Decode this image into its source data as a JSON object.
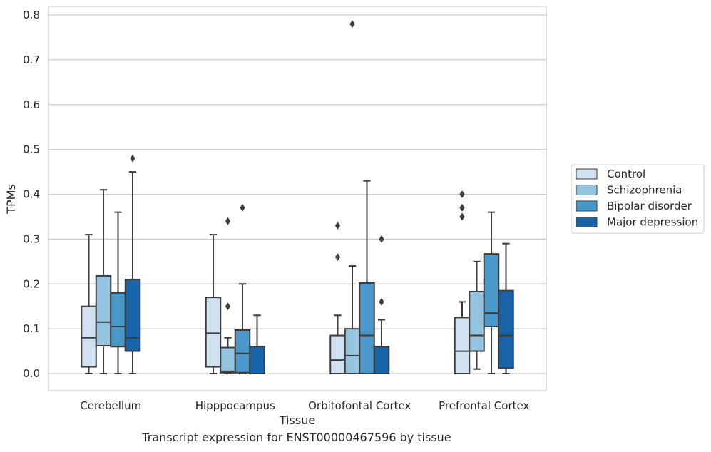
{
  "caption": "Transcript expression for ENST00000467596 by tissue",
  "chart_data": {
    "type": "box",
    "xlabel": "Tissue",
    "ylabel": "TPMs",
    "ylim": [
      -0.04,
      0.82
    ],
    "yticks": [
      0.0,
      0.1,
      0.2,
      0.3,
      0.4,
      0.5,
      0.6,
      0.7,
      0.8
    ],
    "ytick_labels": [
      "0.0",
      "0.1",
      "0.2",
      "0.3",
      "0.4",
      "0.5",
      "0.6",
      "0.7",
      "0.8"
    ],
    "grid": true,
    "legend_position": "right",
    "categories": [
      "Cerebellum",
      "Hipppocampus",
      "Orbitofontal Cortex",
      "Prefrontal Cortex"
    ],
    "series": [
      {
        "name": "Control",
        "color": "#d0e1f2",
        "boxes": [
          {
            "q1": 0.015,
            "median": 0.08,
            "q3": 0.15,
            "whisker_low": 0.0,
            "whisker_high": 0.31,
            "outliers": []
          },
          {
            "q1": 0.015,
            "median": 0.09,
            "q3": 0.17,
            "whisker_low": 0.0,
            "whisker_high": 0.31,
            "outliers": []
          },
          {
            "q1": 0.0,
            "median": 0.03,
            "q3": 0.085,
            "whisker_low": 0.0,
            "whisker_high": 0.13,
            "outliers": [
              0.26,
              0.33
            ]
          },
          {
            "q1": 0.0,
            "median": 0.05,
            "q3": 0.125,
            "whisker_low": 0.0,
            "whisker_high": 0.16,
            "outliers": [
              0.35,
              0.37,
              0.4
            ]
          }
        ]
      },
      {
        "name": "Schizophrenia",
        "color": "#94c4df",
        "boxes": [
          {
            "q1": 0.062,
            "median": 0.115,
            "q3": 0.218,
            "whisker_low": 0.0,
            "whisker_high": 0.41,
            "outliers": []
          },
          {
            "q1": 0.002,
            "median": 0.005,
            "q3": 0.058,
            "whisker_low": 0.0,
            "whisker_high": 0.08,
            "outliers": [
              0.15,
              0.34
            ]
          },
          {
            "q1": 0.0,
            "median": 0.04,
            "q3": 0.1,
            "whisker_low": 0.0,
            "whisker_high": 0.24,
            "outliers": [
              0.78
            ]
          },
          {
            "q1": 0.05,
            "median": 0.085,
            "q3": 0.183,
            "whisker_low": 0.01,
            "whisker_high": 0.25,
            "outliers": []
          }
        ]
      },
      {
        "name": "Bipolar disorder",
        "color": "#4a98c9",
        "boxes": [
          {
            "q1": 0.06,
            "median": 0.105,
            "q3": 0.18,
            "whisker_low": 0.0,
            "whisker_high": 0.36,
            "outliers": []
          },
          {
            "q1": 0.002,
            "median": 0.045,
            "q3": 0.097,
            "whisker_low": 0.0,
            "whisker_high": 0.2,
            "outliers": [
              0.37
            ]
          },
          {
            "q1": 0.0,
            "median": 0.085,
            "q3": 0.202,
            "whisker_low": 0.0,
            "whisker_high": 0.43,
            "outliers": []
          },
          {
            "q1": 0.105,
            "median": 0.135,
            "q3": 0.267,
            "whisker_low": 0.0,
            "whisker_high": 0.36,
            "outliers": []
          }
        ]
      },
      {
        "name": "Major depression",
        "color": "#1764ab",
        "boxes": [
          {
            "q1": 0.05,
            "median": 0.08,
            "q3": 0.21,
            "whisker_low": 0.0,
            "whisker_high": 0.45,
            "outliers": [
              0.48
            ]
          },
          {
            "q1": 0.0,
            "median": 0.0,
            "q3": 0.06,
            "whisker_low": 0.0,
            "whisker_high": 0.13,
            "outliers": []
          },
          {
            "q1": 0.0,
            "median": 0.0,
            "q3": 0.06,
            "whisker_low": 0.0,
            "whisker_high": 0.12,
            "outliers": [
              0.16,
              0.3
            ]
          },
          {
            "q1": 0.012,
            "median": 0.085,
            "q3": 0.185,
            "whisker_low": 0.0,
            "whisker_high": 0.29,
            "outliers": []
          }
        ]
      }
    ]
  }
}
